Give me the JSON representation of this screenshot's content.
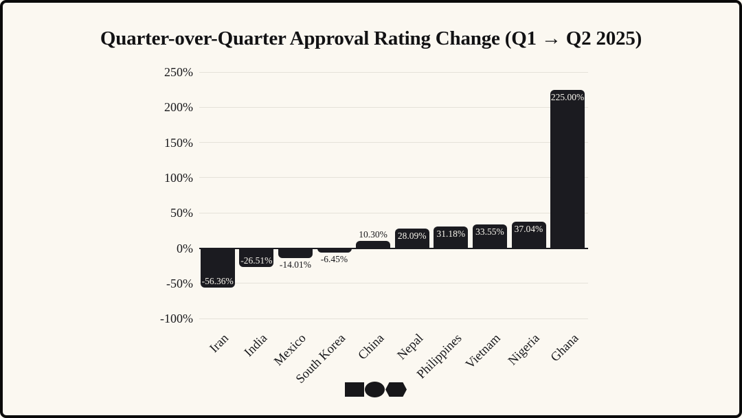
{
  "chart_data": {
    "type": "bar",
    "title": "Quarter-over-Quarter Approval Rating Change (Q1 → Q2 2025)",
    "categories": [
      "Iran",
      "India",
      "Mexico",
      "South Korea",
      "China",
      "Nepal",
      "Philippines",
      "Vietnam",
      "Nigeria",
      "Ghana"
    ],
    "values": [
      -56.36,
      -26.51,
      -14.01,
      -6.45,
      10.3,
      28.09,
      31.18,
      33.55,
      37.04,
      225.0
    ],
    "bar_labels": [
      "-56.36%",
      "-26.51%",
      "-14.01%",
      "-6.45%",
      "10.30%",
      "28.09%",
      "31.18%",
      "33.55%",
      "37.04%",
      "225.00%"
    ],
    "xlabel": "",
    "ylabel": "",
    "ylim": [
      -100,
      250
    ],
    "yticks": {
      "values": [
        250,
        200,
        150,
        100,
        50,
        0,
        -50,
        -100
      ],
      "labels": [
        "250%",
        "200%",
        "150%",
        "100%",
        "50%",
        "0%",
        "-50%",
        "-100%"
      ]
    },
    "grid": "horizontal-light",
    "legend": "none",
    "colors": {
      "bar": "#1B1B20",
      "background": "#FBF8F1",
      "gridline": "#E5E2D9",
      "zero_line": "#1B1B20",
      "text": "#17171A",
      "label_inside": "#F6F3EB"
    }
  },
  "footer_logo": {
    "shapes": [
      "square-shape",
      "circle-shape",
      "hexagon-shape"
    ],
    "color": "#17171A"
  }
}
